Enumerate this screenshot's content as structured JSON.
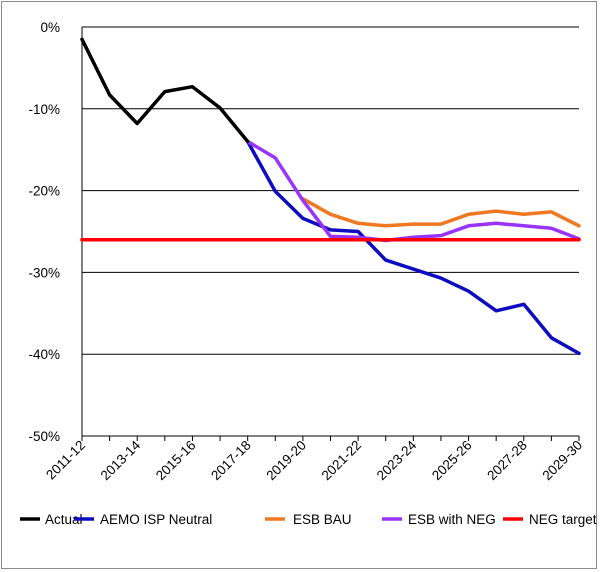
{
  "chart_data": {
    "type": "line",
    "title": "",
    "xlabel": "",
    "ylabel": "",
    "ylim": [
      -50,
      0
    ],
    "grid": true,
    "legend_placement": "bottom",
    "x_categories": [
      "2011-12",
      "2012-13",
      "2013-14",
      "2014-15",
      "2015-16",
      "2016-17",
      "2017-18",
      "2018-19",
      "2019-20",
      "2020-21",
      "2021-22",
      "2022-23",
      "2023-24",
      "2024-25",
      "2025-26",
      "2026-27",
      "2027-28",
      "2028-29",
      "2029-30"
    ],
    "x_tick_labels": [
      "2011-12",
      "2013-14",
      "2015-16",
      "2017-18",
      "2019-20",
      "2021-22",
      "2023-24",
      "2025-26",
      "2027-28",
      "2029-30"
    ],
    "y_ticks": [
      0,
      -10,
      -20,
      -30,
      -40,
      -50
    ],
    "y_tick_labels": [
      "0%",
      "-10%",
      "-20%",
      "-30%",
      "-40%",
      "-50%"
    ],
    "series": [
      {
        "name": "Actual",
        "color": "#000000",
        "points": [
          [
            "2011-12",
            -1.5
          ],
          [
            "2012-13",
            -8.3
          ],
          [
            "2013-14",
            -11.8
          ],
          [
            "2014-15",
            -7.9
          ],
          [
            "2015-16",
            -7.3
          ],
          [
            "2016-17",
            -9.9
          ],
          [
            "2017-18",
            -14.0
          ]
        ]
      },
      {
        "name": "AEMO ISP Neutral",
        "color": "#0d0dbf",
        "points": [
          [
            "2017-18",
            -14.0
          ],
          [
            "2018-19",
            -20.1
          ],
          [
            "2019-20",
            -23.4
          ],
          [
            "2020-21",
            -24.8
          ],
          [
            "2021-22",
            -25.0
          ],
          [
            "2022-23",
            -28.5
          ],
          [
            "2023-24",
            -29.6
          ],
          [
            "2024-25",
            -30.7
          ],
          [
            "2025-26",
            -32.3
          ],
          [
            "2026-27",
            -34.7
          ],
          [
            "2027-28",
            -33.9
          ],
          [
            "2028-29",
            -38.0
          ],
          [
            "2029-30",
            -39.9
          ]
        ]
      },
      {
        "name": "ESB BAU",
        "color": "#f07820",
        "points": [
          [
            "2019-20",
            -21.0
          ],
          [
            "2020-21",
            -22.9
          ],
          [
            "2021-22",
            -24.0
          ],
          [
            "2022-23",
            -24.3
          ],
          [
            "2023-24",
            -24.1
          ],
          [
            "2024-25",
            -24.1
          ],
          [
            "2025-26",
            -22.9
          ],
          [
            "2026-27",
            -22.5
          ],
          [
            "2027-28",
            -22.9
          ],
          [
            "2028-29",
            -22.6
          ],
          [
            "2029-30",
            -24.3
          ]
        ]
      },
      {
        "name": "ESB with NEG",
        "color": "#9933ff",
        "points": [
          [
            "2017-18",
            -14.0
          ],
          [
            "2018-19",
            -16.0
          ],
          [
            "2019-20",
            -21.2
          ],
          [
            "2020-21",
            -25.6
          ],
          [
            "2021-22",
            -25.7
          ],
          [
            "2022-23",
            -26.1
          ],
          [
            "2023-24",
            -25.7
          ],
          [
            "2024-25",
            -25.5
          ],
          [
            "2025-26",
            -24.3
          ],
          [
            "2026-27",
            -24.0
          ],
          [
            "2027-28",
            -24.3
          ],
          [
            "2028-29",
            -24.6
          ],
          [
            "2029-30",
            -25.9
          ]
        ]
      },
      {
        "name": "NEG target",
        "color": "#ff0000",
        "points": [
          [
            "2011-12",
            -26.0
          ],
          [
            "2029-30",
            -26.0
          ]
        ]
      }
    ]
  }
}
